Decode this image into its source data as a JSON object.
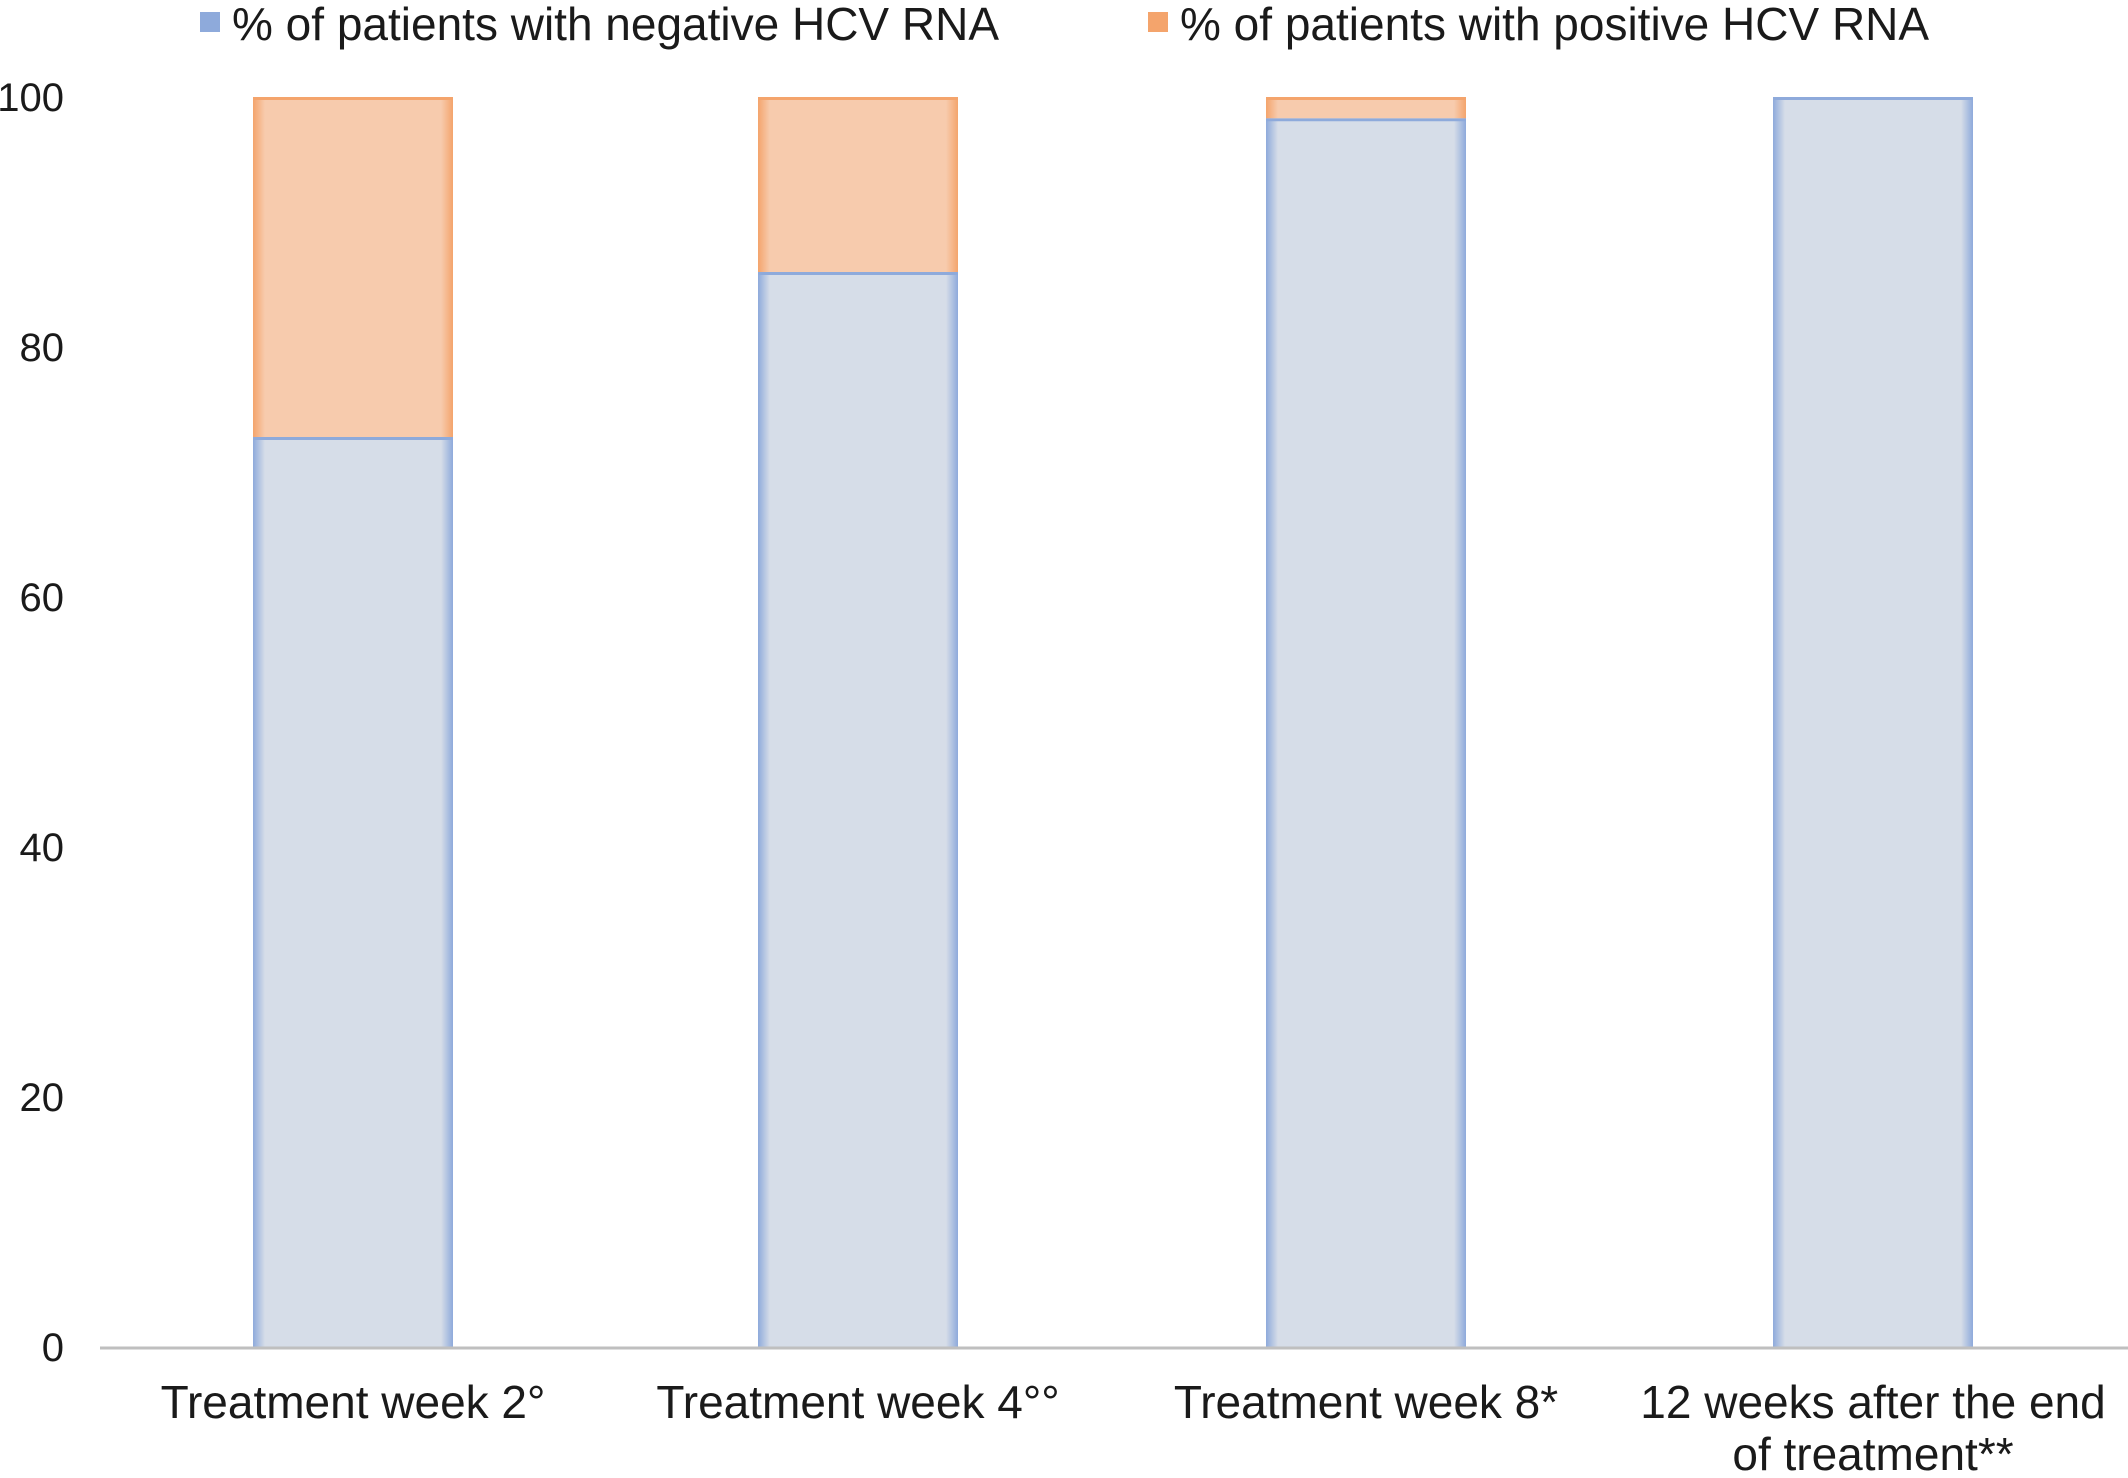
{
  "chart_data": {
    "type": "bar",
    "stacked": true,
    "categories": [
      "Treatment week 2°",
      "Treatment week 4°°",
      "Treatment week 8*",
      "12 weeks after the end of treatment**"
    ],
    "category_label_lines": [
      [
        "Treatment week 2°"
      ],
      [
        "Treatment week 4°°"
      ],
      [
        "Treatment week 8*"
      ],
      [
        "12 weeks after the end",
        "of treatment**"
      ]
    ],
    "series": [
      {
        "name": "% of patients with negative HCV RNA",
        "values": [
          72.8,
          86.0,
          98.3,
          100
        ],
        "color": "#d6dde8",
        "edge_color": "#8eaadb"
      },
      {
        "name": "% of patients with positive HCV RNA",
        "values": [
          27.2,
          14.0,
          1.7,
          0
        ],
        "color": "#f7cbad",
        "edge_color": "#f4a46c"
      }
    ],
    "yticks": [
      "0",
      "20",
      "40",
      "60",
      "80",
      "100"
    ],
    "ylim": [
      0,
      100
    ],
    "xlabel": "",
    "ylabel": "",
    "title": "",
    "grid": false,
    "legend_position": "top"
  }
}
